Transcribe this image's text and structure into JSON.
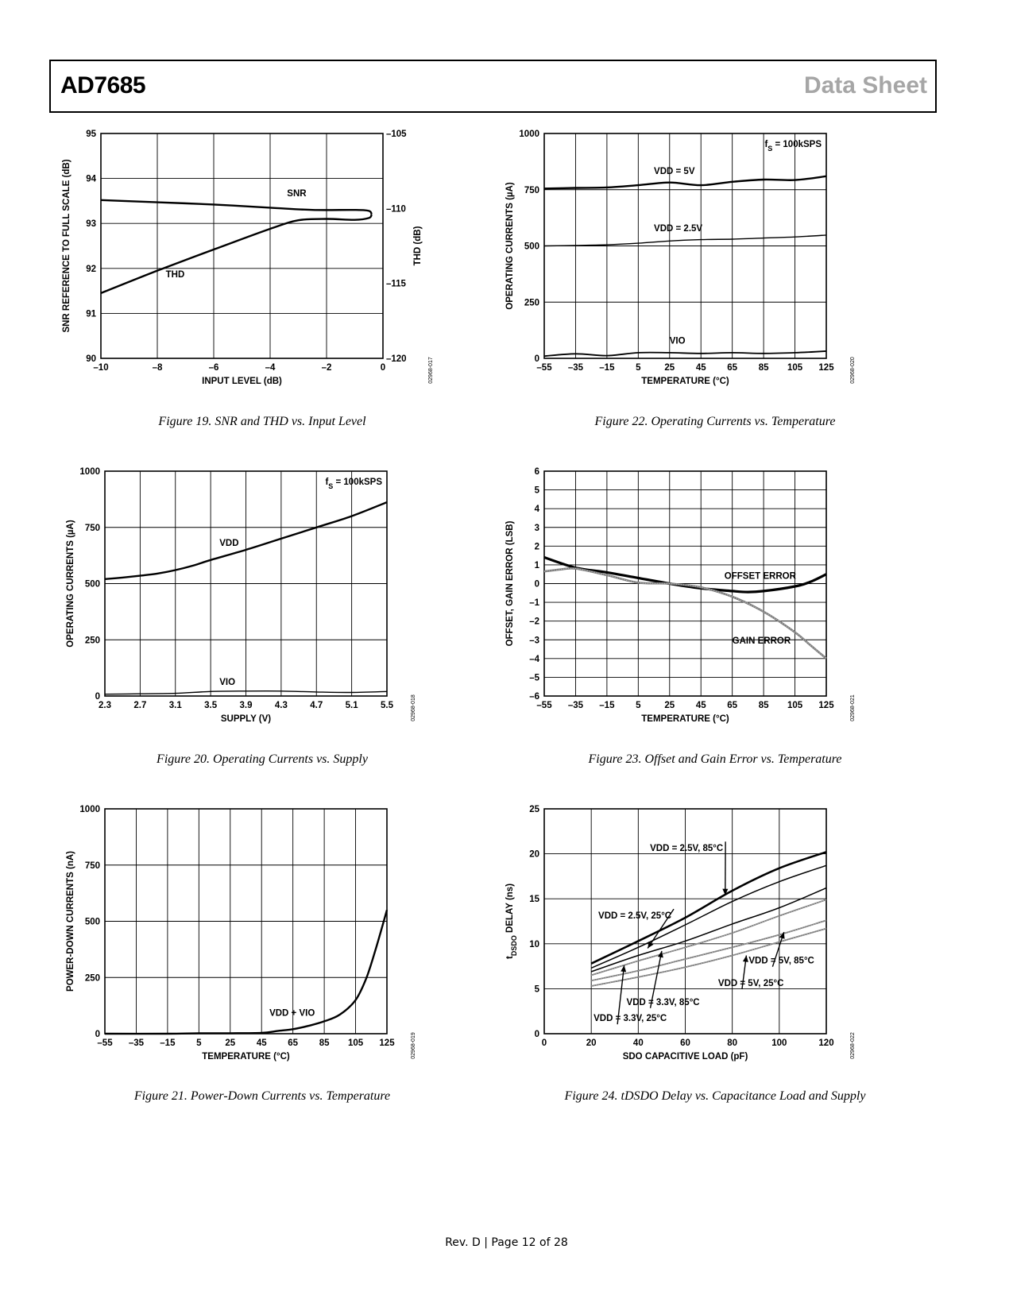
{
  "header": {
    "part": "AD7685",
    "doc": "Data Sheet"
  },
  "footer": "Rev. D | Page 12 of 28",
  "chart_data": [
    {
      "id": "fig19",
      "type": "line",
      "caption": "Figure 19. SNR and THD vs. Input Level",
      "code": "02968-017",
      "xlabel": "INPUT LEVEL (dB)",
      "ylabel": "SNR REFERENCE TO FULL SCALE (dB)",
      "y2label": "THD (dB)",
      "xlim": [
        -10,
        0
      ],
      "ylim": [
        90,
        95
      ],
      "y2lim": [
        -120,
        -105
      ],
      "xticks": [
        "–10",
        "–8",
        "–6",
        "–4",
        "–2",
        "0"
      ],
      "yticks": [
        "90",
        "91",
        "92",
        "93",
        "94",
        "95"
      ],
      "y2ticks": [
        "–120",
        "–115",
        "–110",
        "–105"
      ],
      "series": [
        {
          "name": "SNR",
          "axis": "left",
          "width": 2.4,
          "x": [
            -10,
            -8,
            -6,
            -4,
            -2.5,
            -1,
            -0.5,
            -0.4
          ],
          "y": [
            93.52,
            93.47,
            93.42,
            93.35,
            93.3,
            93.3,
            93.28,
            93.2
          ]
        },
        {
          "name": "THD",
          "axis": "left",
          "width": 2.4,
          "x": [
            -10,
            -8,
            -6,
            -4,
            -3,
            -2,
            -1,
            -0.5,
            -0.4
          ],
          "y": [
            91.45,
            91.95,
            92.42,
            92.88,
            93.07,
            93.1,
            93.08,
            93.12,
            93.2
          ]
        }
      ],
      "labels": [
        {
          "text": "SNR",
          "x": -3.4,
          "y": 93.6
        },
        {
          "text": "THD",
          "x": -7.7,
          "y": 91.8
        }
      ]
    },
    {
      "id": "fig22",
      "type": "line",
      "caption": "Figure 22. Operating Currents vs. Temperature",
      "code": "02968-020",
      "xlabel": "TEMPERATURE (°C)",
      "ylabel": "OPERATING CURRENTS (µA)",
      "xlim": [
        -55,
        125
      ],
      "ylim": [
        0,
        1000
      ],
      "xticks": [
        "–55",
        "–35",
        "–15",
        "5",
        "25",
        "45",
        "65",
        "85",
        "105",
        "125"
      ],
      "yticks": [
        "0",
        "250",
        "500",
        "750",
        "1000"
      ],
      "legend_text": "fS = 100kSPS",
      "series": [
        {
          "name": "VDD = 5V",
          "width": 2.4,
          "x": [
            -55,
            -35,
            -15,
            5,
            25,
            45,
            65,
            85,
            105,
            125
          ],
          "y": [
            755,
            758,
            760,
            770,
            782,
            770,
            785,
            795,
            793,
            810
          ]
        },
        {
          "name": "VDD = 2.5V",
          "width": 1.4,
          "x": [
            -55,
            -35,
            -15,
            5,
            25,
            45,
            65,
            85,
            105,
            125
          ],
          "y": [
            500,
            502,
            505,
            512,
            522,
            528,
            530,
            535,
            540,
            548
          ]
        },
        {
          "name": "VIO",
          "width": 1.8,
          "x": [
            -55,
            -35,
            -15,
            5,
            25,
            45,
            65,
            85,
            105,
            125
          ],
          "y": [
            10,
            20,
            12,
            25,
            25,
            22,
            25,
            22,
            25,
            32
          ]
        }
      ],
      "labels": [
        {
          "text": "VDD = 5V",
          "x": 15,
          "y": 820
        },
        {
          "text": "VDD = 2.5V",
          "x": 15,
          "y": 565
        },
        {
          "text": "VIO",
          "x": 25,
          "y": 65
        }
      ]
    },
    {
      "id": "fig20",
      "type": "line",
      "caption": "Figure 20. Operating Currents vs. Supply",
      "code": "02968-018",
      "xlabel": "SUPPLY (V)",
      "ylabel": "OPERATING CURRENTS (µA)",
      "xlim": [
        2.3,
        5.5
      ],
      "ylim": [
        0,
        1000
      ],
      "xticks": [
        "2.3",
        "2.7",
        "3.1",
        "3.5",
        "3.9",
        "4.3",
        "4.7",
        "5.1",
        "5.5"
      ],
      "yticks": [
        "0",
        "250",
        "500",
        "750",
        "1000"
      ],
      "legend_text": "fS = 100kSPS",
      "series": [
        {
          "name": "VDD",
          "width": 2.4,
          "x": [
            2.3,
            2.5,
            2.7,
            2.9,
            3.1,
            3.3,
            3.5,
            3.9,
            4.3,
            4.7,
            5.1,
            5.5
          ],
          "y": [
            520,
            527,
            535,
            545,
            560,
            580,
            605,
            650,
            700,
            750,
            800,
            862
          ]
        },
        {
          "name": "VIO",
          "width": 1.4,
          "x": [
            2.3,
            2.7,
            3.1,
            3.5,
            3.9,
            4.3,
            4.7,
            5.1,
            5.5
          ],
          "y": [
            8,
            10,
            12,
            20,
            22,
            22,
            18,
            16,
            20
          ]
        }
      ],
      "labels": [
        {
          "text": "VDD",
          "x": 3.6,
          "y": 668
        },
        {
          "text": "VIO",
          "x": 3.6,
          "y": 50
        }
      ]
    },
    {
      "id": "fig23",
      "type": "line",
      "caption": "Figure 23. Offset and Gain Error vs. Temperature",
      "code": "02968-021",
      "xlabel": "TEMPERATURE (°C)",
      "ylabel": "OFFSET, GAIN ERROR (LSB)",
      "xlim": [
        -55,
        125
      ],
      "ylim": [
        -6,
        6
      ],
      "xticks": [
        "–55",
        "–35",
        "–15",
        "5",
        "25",
        "45",
        "65",
        "85",
        "105",
        "125"
      ],
      "yticks": [
        "–6",
        "–5",
        "–4",
        "–3",
        "–2",
        "–1",
        "0",
        "1",
        "2",
        "3",
        "4",
        "5",
        "6"
      ],
      "series": [
        {
          "name": "OFFSET ERROR",
          "width": 3.2,
          "x": [
            -55,
            -35,
            -15,
            5,
            25,
            45,
            65,
            75,
            85,
            105,
            115,
            125
          ],
          "y": [
            1.4,
            0.85,
            0.6,
            0.3,
            0,
            -0.25,
            -0.4,
            -0.45,
            -0.4,
            -0.15,
            0.1,
            0.5
          ]
        },
        {
          "name": "GAIN ERROR",
          "width": 2.6,
          "grey": true,
          "x": [
            -55,
            -45,
            -35,
            -15,
            5,
            25,
            45,
            65,
            85,
            105,
            115,
            125
          ],
          "y": [
            0.65,
            0.75,
            0.8,
            0.45,
            0.05,
            0,
            -0.2,
            -0.7,
            -1.5,
            -2.6,
            -3.3,
            -4
          ]
        }
      ],
      "labels": [
        {
          "text": "OFFSET ERROR",
          "x": 60,
          "y": 0.25
        },
        {
          "text": "GAIN ERROR",
          "x": 65,
          "y": -3.2
        }
      ]
    },
    {
      "id": "fig21",
      "type": "line",
      "caption": "Figure 21. Power-Down Currents vs. Temperature",
      "code": "02968-019",
      "xlabel": "TEMPERATURE (°C)",
      "ylabel": "POWER-DOWN CURRENTS (nA)",
      "xlim": [
        -55,
        125
      ],
      "ylim": [
        0,
        1000
      ],
      "xticks": [
        "–55",
        "–35",
        "–15",
        "5",
        "25",
        "45",
        "65",
        "85",
        "105",
        "125"
      ],
      "yticks": [
        "0",
        "250",
        "500",
        "750",
        "1000"
      ],
      "series": [
        {
          "name": "VDD + VIO",
          "width": 2.4,
          "x": [
            -55,
            -15,
            5,
            25,
            45,
            55,
            65,
            75,
            85,
            95,
            105,
            112,
            118,
            125
          ],
          "y": [
            0,
            0,
            2,
            2,
            4,
            12,
            20,
            35,
            55,
            85,
            150,
            250,
            380,
            550
          ]
        }
      ],
      "labels": [
        {
          "text": "VDD + VIO",
          "x": 50,
          "y": 80
        }
      ]
    },
    {
      "id": "fig24",
      "type": "line",
      "caption": "Figure 24. tDSDO Delay vs. Capacitance Load and Supply",
      "code": "02968-022",
      "xlabel": "SDO CAPACITIVE LOAD (pF)",
      "ylabel": "tDSDO DELAY (ns)",
      "xlim": [
        0,
        120
      ],
      "ylim": [
        0,
        25
      ],
      "xticks": [
        "0",
        "20",
        "40",
        "60",
        "80",
        "100",
        "120"
      ],
      "yticks": [
        "0",
        "5",
        "10",
        "15",
        "20",
        "25"
      ],
      "series": [
        {
          "name": "VDD = 2.5V, 85°C",
          "width": 2.6,
          "x": [
            20,
            40,
            60,
            80,
            100,
            120
          ],
          "y": [
            7.8,
            10.3,
            12.9,
            15.9,
            18.4,
            20.2
          ]
        },
        {
          "name": "VDD = 2.5V, 25°C",
          "width": 1.5,
          "x": [
            20,
            40,
            60,
            80,
            100,
            120
          ],
          "y": [
            7.3,
            9.6,
            12.1,
            14.7,
            16.9,
            18.7
          ]
        },
        {
          "name": "VDD = 3.3V, 85°C",
          "width": 1.5,
          "x": [
            20,
            40,
            60,
            80,
            100,
            120
          ],
          "y": [
            6.9,
            8.7,
            10.3,
            12.2,
            14.0,
            16.2
          ]
        },
        {
          "name": "VDD = 3.3V, 25°C",
          "width": 1.8,
          "grey": true,
          "x": [
            20,
            40,
            60,
            80,
            100,
            120
          ],
          "y": [
            6.5,
            8.1,
            9.6,
            11.2,
            13.1,
            14.9
          ]
        },
        {
          "name": "VDD = 5V, 85°C",
          "width": 1.8,
          "grey": true,
          "x": [
            20,
            40,
            60,
            80,
            100,
            120
          ],
          "y": [
            5.9,
            7.0,
            8.3,
            9.6,
            11.0,
            12.6
          ]
        },
        {
          "name": "VDD = 5V, 25°C",
          "width": 1.8,
          "grey": true,
          "x": [
            20,
            40,
            60,
            80,
            100,
            120
          ],
          "y": [
            5.3,
            6.3,
            7.4,
            8.7,
            10.2,
            11.7
          ]
        }
      ],
      "labels": [
        {
          "text": "VDD = 2.5V, 85°C",
          "x": 45,
          "y": 20.3,
          "ax": 77,
          "ay": 15.4
        },
        {
          "text": "VDD = 2.5V, 25°C",
          "x": 23,
          "y": 12.8,
          "ax": 44,
          "ay": 9.5
        },
        {
          "text": "VDD = 3.3V, 85°C",
          "x": 35,
          "y": 3.2,
          "ax": 50,
          "ay": 9.2
        },
        {
          "text": "VDD = 3.3V, 25°C",
          "x": 21,
          "y": 1.4,
          "ax": 34,
          "ay": 7.6
        },
        {
          "text": "VDD = 5V, 85°C",
          "x": 87,
          "y": 7.8,
          "ax": 102,
          "ay": 11.3
        },
        {
          "text": "VDD = 5V, 25°C",
          "x": 74,
          "y": 5.3,
          "ax": 86,
          "ay": 8.7
        }
      ]
    }
  ]
}
